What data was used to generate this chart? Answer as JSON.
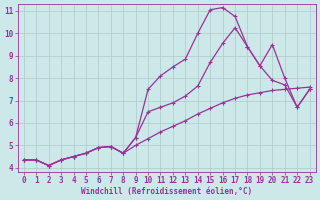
{
  "xlabel": "Windchill (Refroidissement éolien,°C)",
  "background_color": "#cce8e8",
  "grid_color": "#b0c8c8",
  "line_color": "#993399",
  "xlim": [
    -0.5,
    23.5
  ],
  "ylim": [
    3.8,
    11.3
  ],
  "xticks": [
    0,
    1,
    2,
    3,
    4,
    5,
    6,
    7,
    8,
    9,
    10,
    11,
    12,
    13,
    14,
    15,
    16,
    17,
    18,
    19,
    20,
    21,
    22,
    23
  ],
  "yticks": [
    4,
    5,
    6,
    7,
    8,
    9,
    10,
    11
  ],
  "curve1_x": [
    0,
    1,
    2,
    3,
    4,
    5,
    6,
    7,
    8,
    9,
    10,
    11,
    12,
    13,
    14,
    15,
    16,
    17,
    18,
    19,
    20,
    21,
    22,
    23
  ],
  "curve1_y": [
    4.35,
    4.35,
    4.1,
    4.35,
    4.5,
    4.65,
    4.9,
    4.95,
    4.65,
    5.0,
    5.3,
    5.6,
    5.85,
    6.1,
    6.4,
    6.65,
    6.9,
    7.1,
    7.25,
    7.35,
    7.45,
    7.5,
    7.55,
    7.6
  ],
  "curve2_x": [
    0,
    1,
    2,
    3,
    4,
    5,
    6,
    7,
    8,
    9,
    10,
    11,
    12,
    13,
    14,
    15,
    16,
    17,
    18,
    19,
    20,
    21,
    22,
    23
  ],
  "curve2_y": [
    4.35,
    4.35,
    4.1,
    4.35,
    4.5,
    4.65,
    4.9,
    4.95,
    4.65,
    5.35,
    6.5,
    6.7,
    6.9,
    7.2,
    7.65,
    8.7,
    9.55,
    10.25,
    9.4,
    8.55,
    9.5,
    8.0,
    6.7,
    7.5
  ],
  "curve3_x": [
    0,
    1,
    2,
    3,
    4,
    5,
    6,
    7,
    8,
    9,
    10,
    11,
    12,
    13,
    14,
    15,
    16,
    17,
    18,
    19,
    20,
    21,
    22,
    23
  ],
  "curve3_y": [
    4.35,
    4.35,
    4.1,
    4.35,
    4.5,
    4.65,
    4.9,
    4.95,
    4.65,
    5.35,
    7.5,
    8.1,
    8.5,
    8.85,
    10.0,
    11.05,
    11.15,
    10.75,
    9.4,
    8.55,
    7.9,
    7.7,
    6.7,
    7.5
  ],
  "marker": "+",
  "markersize": 3,
  "linewidth": 0.9
}
